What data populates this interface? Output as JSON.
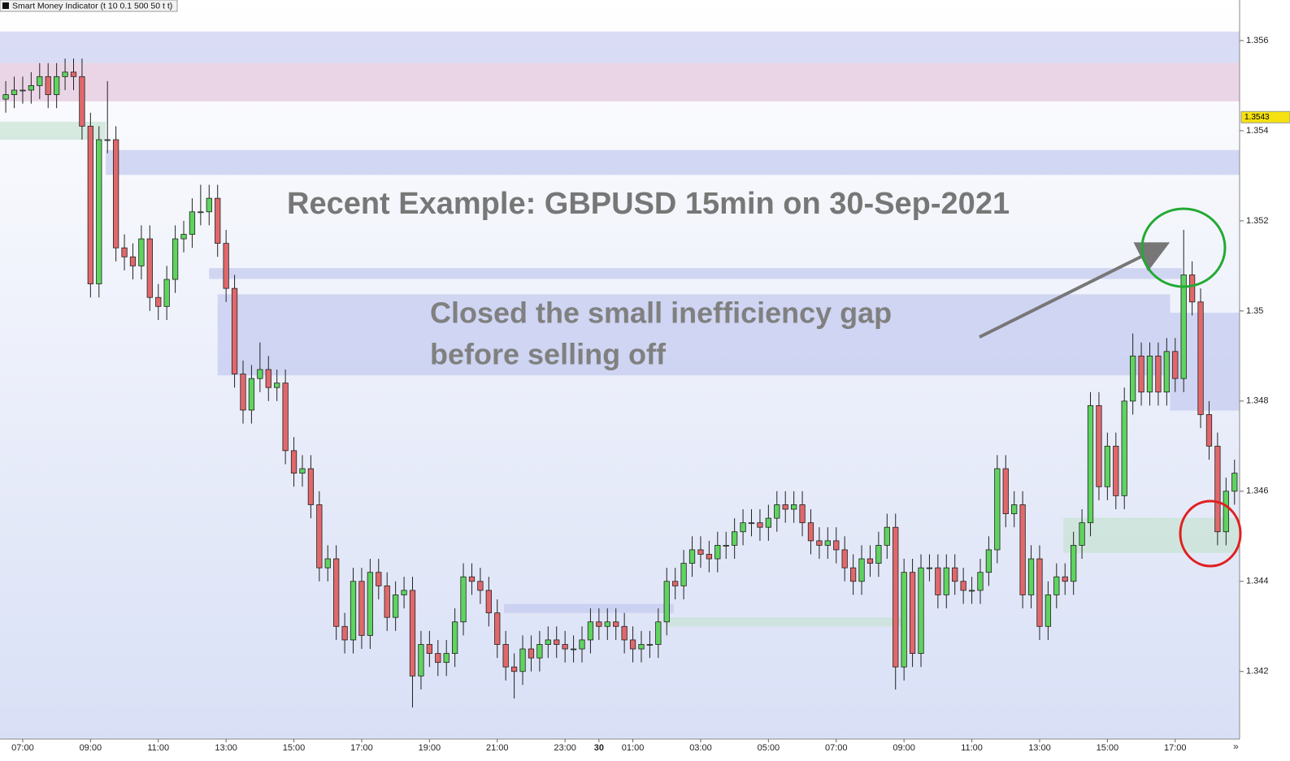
{
  "chart_data": {
    "type": "candlestick",
    "indicator_label": "Smart Money Indicator (t 10 0.1 500 50 t t)",
    "annotations": {
      "headline": "Recent Example: GBPUSD 15min on 30-Sep-2021",
      "note": [
        "Closed the small inefficiency gap",
        "before selling off"
      ]
    },
    "up_color": "#5fd35f",
    "down_color": "#e0686b",
    "xlim": [
      6.33,
      42.9
    ],
    "xticks": [
      {
        "value": 7,
        "label": "07:00"
      },
      {
        "value": 9,
        "label": "09:00"
      },
      {
        "value": 11,
        "label": "11:00"
      },
      {
        "value": 13,
        "label": "13:00"
      },
      {
        "value": 15,
        "label": "15:00"
      },
      {
        "value": 17,
        "label": "17:00"
      },
      {
        "value": 19,
        "label": "19:00"
      },
      {
        "value": 21,
        "label": "21:00"
      },
      {
        "value": 23,
        "label": "23:00"
      },
      {
        "value": 24,
        "label": "30"
      },
      {
        "value": 25,
        "label": "01:00"
      },
      {
        "value": 27,
        "label": "03:00"
      },
      {
        "value": 29,
        "label": "05:00"
      },
      {
        "value": 31,
        "label": "07:00"
      },
      {
        "value": 33,
        "label": "09:00"
      },
      {
        "value": 35,
        "label": "11:00"
      },
      {
        "value": 37,
        "label": "13:00"
      },
      {
        "value": 39,
        "label": "15:00"
      },
      {
        "value": 41,
        "label": "17:00"
      }
    ],
    "ylim": [
      1.3405,
      1.3569
    ],
    "yticks": [
      1.356,
      1.354,
      1.352,
      1.35,
      1.348,
      1.346,
      1.344,
      1.342
    ],
    "last_price": 1.3543,
    "last_price_color": "#f5e10f",
    "zones": [
      {
        "x": [
          6.33,
          42.9
        ],
        "y": [
          1.3555,
          1.3562
        ],
        "color": "#c9cdf0"
      },
      {
        "x": [
          6.33,
          42.9
        ],
        "y": [
          1.35465,
          1.3555
        ],
        "color": "#e3c4dc"
      },
      {
        "x": [
          6.33,
          9.45
        ],
        "y": [
          1.3538,
          1.3542
        ],
        "color": "#c7e3d3"
      },
      {
        "x": [
          9.45,
          42.9
        ],
        "y": [
          1.35302,
          1.35357
        ],
        "color": "#c2c9ee"
      },
      {
        "x": [
          12.5,
          41.2
        ],
        "y": [
          1.35071,
          1.35095
        ],
        "color": "#c2c9ee"
      },
      {
        "x": [
          12.75,
          40.85
        ],
        "y": [
          1.34857,
          1.35037
        ],
        "color": "#c2c9ee"
      },
      {
        "x": [
          40.85,
          42.9
        ],
        "y": [
          1.34779,
          1.34996
        ],
        "color": "#c2c9ee"
      },
      {
        "x": [
          21.2,
          26.2
        ],
        "y": [
          1.3433,
          1.3435
        ],
        "color": "#c2c9ee"
      },
      {
        "x": [
          26,
          32.9
        ],
        "y": [
          1.343,
          1.3432
        ],
        "color": "#c7e3d3"
      },
      {
        "x": [
          37.7,
          42.9
        ],
        "y": [
          1.34463,
          1.34541
        ],
        "color": "#c7e3d3"
      }
    ],
    "x": [
      6.5,
      6.75,
      7,
      7.25,
      7.5,
      7.75,
      8,
      8.25,
      8.5,
      8.75,
      9,
      9.25,
      9.5,
      9.75,
      10,
      10.25,
      10.5,
      10.75,
      11,
      11.25,
      11.5,
      11.75,
      12,
      12.25,
      12.5,
      12.75,
      13,
      13.25,
      13.5,
      13.75,
      14,
      14.25,
      14.5,
      14.75,
      15,
      15.25,
      15.5,
      15.75,
      16,
      16.25,
      16.5,
      16.75,
      17,
      17.25,
      17.5,
      17.75,
      18,
      18.25,
      18.5,
      18.75,
      19,
      19.25,
      19.5,
      19.75,
      20,
      20.25,
      20.5,
      20.75,
      21,
      21.25,
      21.5,
      21.75,
      22,
      22.25,
      22.5,
      22.75,
      23,
      23.25,
      23.5,
      23.75,
      24,
      24.25,
      24.5,
      24.75,
      25,
      25.25,
      25.5,
      25.75,
      26,
      26.25,
      26.5,
      26.75,
      27,
      27.25,
      27.5,
      27.75,
      28,
      28.25,
      28.5,
      28.75,
      29,
      29.25,
      29.5,
      29.75,
      30,
      30.25,
      30.5,
      30.75,
      31,
      31.25,
      31.5,
      31.75,
      32,
      32.25,
      32.5,
      32.75,
      33,
      33.25,
      33.5,
      33.75,
      34,
      34.25,
      34.5,
      34.75,
      35,
      35.25,
      35.5,
      35.75,
      36,
      36.25,
      36.5,
      36.75,
      37,
      37.25,
      37.5,
      37.75,
      38,
      38.25,
      38.5,
      38.75,
      39,
      39.25,
      39.5,
      39.75,
      40,
      40.25,
      40.5,
      40.75,
      41,
      41.25,
      41.5,
      41.75,
      42,
      42.25,
      42.5,
      42.75
    ],
    "open": [
      1.3547,
      1.3548,
      1.3549,
      1.3549,
      1.355,
      1.3552,
      1.3548,
      1.3552,
      1.3553,
      1.3552,
      1.3541,
      1.3506,
      1.3538,
      1.3538,
      1.3514,
      1.3512,
      1.351,
      1.3516,
      1.3503,
      1.3501,
      1.3507,
      1.3516,
      1.3517,
      1.3522,
      1.3522,
      1.3525,
      1.3515,
      1.3505,
      1.3486,
      1.3478,
      1.3485,
      1.3487,
      1.3483,
      1.3484,
      1.3469,
      1.3464,
      1.3465,
      1.3457,
      1.3443,
      1.3445,
      1.343,
      1.3427,
      1.344,
      1.3428,
      1.3442,
      1.3439,
      1.3432,
      1.3437,
      1.3438,
      1.3419,
      1.3426,
      1.3424,
      1.3422,
      1.3424,
      1.3431,
      1.3441,
      1.344,
      1.3438,
      1.3433,
      1.3426,
      1.3421,
      1.342,
      1.3425,
      1.3423,
      1.3426,
      1.3427,
      1.3426,
      1.3425,
      1.3425,
      1.3427,
      1.3431,
      1.343,
      1.3431,
      1.343,
      1.3427,
      1.3425,
      1.3426,
      1.3426,
      1.3431,
      1.344,
      1.3439,
      1.3444,
      1.3447,
      1.3446,
      1.3445,
      1.3448,
      1.3448,
      1.3451,
      1.3453,
      1.3453,
      1.3452,
      1.3454,
      1.3457,
      1.3456,
      1.3457,
      1.3453,
      1.3449,
      1.3448,
      1.3449,
      1.3447,
      1.3443,
      1.344,
      1.3445,
      1.3444,
      1.3448,
      1.3452,
      1.3421,
      1.3442,
      1.3424,
      1.3443,
      1.3443,
      1.3437,
      1.3443,
      1.344,
      1.3438,
      1.3438,
      1.3442,
      1.3447,
      1.3465,
      1.3455,
      1.3457,
      1.3437,
      1.3445,
      1.343,
      1.3437,
      1.3441,
      1.344,
      1.3448,
      1.3453,
      1.3479,
      1.3461,
      1.347,
      1.3459,
      1.348,
      1.349,
      1.3482,
      1.349,
      1.3482,
      1.3491,
      1.3485,
      1.3508,
      1.3502,
      1.3477,
      1.347,
      1.3451,
      1.346
    ],
    "high": [
      1.3551,
      1.3552,
      1.3552,
      1.3553,
      1.3555,
      1.3555,
      1.3555,
      1.3556,
      1.3556,
      1.3556,
      1.3544,
      1.3541,
      1.3551,
      1.3541,
      1.3517,
      1.3515,
      1.3519,
      1.3519,
      1.3506,
      1.351,
      1.3519,
      1.352,
      1.3525,
      1.3528,
      1.3528,
      1.3528,
      1.3518,
      1.3508,
      1.3489,
      1.3488,
      1.3493,
      1.349,
      1.3487,
      1.3487,
      1.3472,
      1.3468,
      1.3468,
      1.346,
      1.3448,
      1.3448,
      1.3433,
      1.3443,
      1.3443,
      1.3445,
      1.3445,
      1.3442,
      1.344,
      1.3441,
      1.3441,
      1.3429,
      1.3429,
      1.3427,
      1.3427,
      1.3434,
      1.3444,
      1.3444,
      1.3443,
      1.3441,
      1.3436,
      1.3429,
      1.3424,
      1.3428,
      1.3428,
      1.3429,
      1.343,
      1.343,
      1.3429,
      1.3428,
      1.343,
      1.3434,
      1.3434,
      1.3434,
      1.3434,
      1.3433,
      1.343,
      1.3429,
      1.3429,
      1.3434,
      1.3443,
      1.3443,
      1.3447,
      1.345,
      1.345,
      1.3449,
      1.3451,
      1.3451,
      1.3454,
      1.3456,
      1.3456,
      1.3456,
      1.3457,
      1.346,
      1.346,
      1.346,
      1.346,
      1.3456,
      1.3452,
      1.3452,
      1.3452,
      1.345,
      1.3446,
      1.3448,
      1.3448,
      1.3451,
      1.3455,
      1.3455,
      1.3445,
      1.3445,
      1.3446,
      1.3446,
      1.3446,
      1.3446,
      1.3446,
      1.3443,
      1.3441,
      1.3445,
      1.345,
      1.3468,
      1.3468,
      1.346,
      1.346,
      1.3448,
      1.3448,
      1.344,
      1.3444,
      1.3444,
      1.3451,
      1.3456,
      1.3482,
      1.3482,
      1.3473,
      1.3473,
      1.3483,
      1.3495,
      1.3493,
      1.3493,
      1.3493,
      1.3494,
      1.3494,
      1.3518,
      1.3511,
      1.3505,
      1.348,
      1.3473,
      1.3463,
      1.3467
    ],
    "low": [
      1.3544,
      1.3545,
      1.3546,
      1.3546,
      1.3547,
      1.3545,
      1.3545,
      1.3549,
      1.3549,
      1.3538,
      1.3503,
      1.3503,
      1.3535,
      1.3511,
      1.3509,
      1.3507,
      1.3507,
      1.35,
      1.3498,
      1.3498,
      1.3504,
      1.3513,
      1.3514,
      1.3519,
      1.3519,
      1.3512,
      1.3502,
      1.3483,
      1.3475,
      1.3475,
      1.3482,
      1.348,
      1.348,
      1.3466,
      1.3461,
      1.3461,
      1.3454,
      1.344,
      1.344,
      1.3427,
      1.3424,
      1.3424,
      1.3425,
      1.3425,
      1.3436,
      1.3429,
      1.3429,
      1.3434,
      1.3412,
      1.3416,
      1.3421,
      1.3419,
      1.3419,
      1.3421,
      1.3428,
      1.3437,
      1.3435,
      1.343,
      1.3423,
      1.3418,
      1.3414,
      1.3417,
      1.342,
      1.342,
      1.3423,
      1.3423,
      1.3422,
      1.3422,
      1.3422,
      1.3424,
      1.3427,
      1.3427,
      1.3427,
      1.3424,
      1.3422,
      1.3422,
      1.3423,
      1.3423,
      1.3428,
      1.3436,
      1.3436,
      1.3441,
      1.3443,
      1.3442,
      1.3442,
      1.3445,
      1.3445,
      1.3448,
      1.345,
      1.3449,
      1.3449,
      1.3451,
      1.3453,
      1.3453,
      1.345,
      1.3446,
      1.3445,
      1.3445,
      1.3444,
      1.344,
      1.3437,
      1.3437,
      1.3441,
      1.3441,
      1.3445,
      1.3416,
      1.3418,
      1.3421,
      1.3421,
      1.344,
      1.3434,
      1.3434,
      1.3437,
      1.3435,
      1.3435,
      1.3435,
      1.3439,
      1.3444,
      1.3452,
      1.3452,
      1.3434,
      1.3434,
      1.3427,
      1.3427,
      1.3434,
      1.3437,
      1.3437,
      1.3445,
      1.345,
      1.3458,
      1.3458,
      1.3456,
      1.3456,
      1.3477,
      1.3479,
      1.3479,
      1.3479,
      1.3479,
      1.3482,
      1.3482,
      1.3499,
      1.3474,
      1.3467,
      1.3448,
      1.3448,
      1.3457
    ],
    "close": [
      1.3548,
      1.3549,
      1.3549,
      1.355,
      1.3552,
      1.3548,
      1.3552,
      1.3553,
      1.3552,
      1.3541,
      1.3506,
      1.3538,
      1.3538,
      1.3514,
      1.3512,
      1.351,
      1.3516,
      1.3503,
      1.3501,
      1.3507,
      1.3516,
      1.3517,
      1.3522,
      1.3522,
      1.3525,
      1.3515,
      1.3505,
      1.3486,
      1.3478,
      1.3485,
      1.3487,
      1.3483,
      1.3484,
      1.3469,
      1.3464,
      1.3465,
      1.3457,
      1.3443,
      1.3445,
      1.343,
      1.3427,
      1.344,
      1.3428,
      1.3442,
      1.3439,
      1.3432,
      1.3437,
      1.3438,
      1.3419,
      1.3426,
      1.3424,
      1.3422,
      1.3424,
      1.3431,
      1.3441,
      1.344,
      1.3438,
      1.3433,
      1.3426,
      1.3421,
      1.342,
      1.3425,
      1.3423,
      1.3426,
      1.3427,
      1.3426,
      1.3425,
      1.3425,
      1.3427,
      1.3431,
      1.343,
      1.3431,
      1.343,
      1.3427,
      1.3425,
      1.3426,
      1.3426,
      1.3431,
      1.344,
      1.3439,
      1.3444,
      1.3447,
      1.3446,
      1.3445,
      1.3448,
      1.3448,
      1.3451,
      1.3453,
      1.3453,
      1.3452,
      1.3454,
      1.3457,
      1.3456,
      1.3457,
      1.3453,
      1.3449,
      1.3448,
      1.3449,
      1.3447,
      1.3443,
      1.344,
      1.3445,
      1.3444,
      1.3448,
      1.3452,
      1.3421,
      1.3442,
      1.3424,
      1.3443,
      1.3443,
      1.3437,
      1.3443,
      1.344,
      1.3438,
      1.3438,
      1.3442,
      1.3447,
      1.3465,
      1.3455,
      1.3457,
      1.3437,
      1.3445,
      1.343,
      1.3437,
      1.3441,
      1.344,
      1.3448,
      1.3453,
      1.3479,
      1.3461,
      1.347,
      1.3459,
      1.348,
      1.349,
      1.3482,
      1.349,
      1.3482,
      1.3491,
      1.3485,
      1.3508,
      1.3502,
      1.3477,
      1.347,
      1.3451,
      1.346,
      1.3464
    ]
  }
}
